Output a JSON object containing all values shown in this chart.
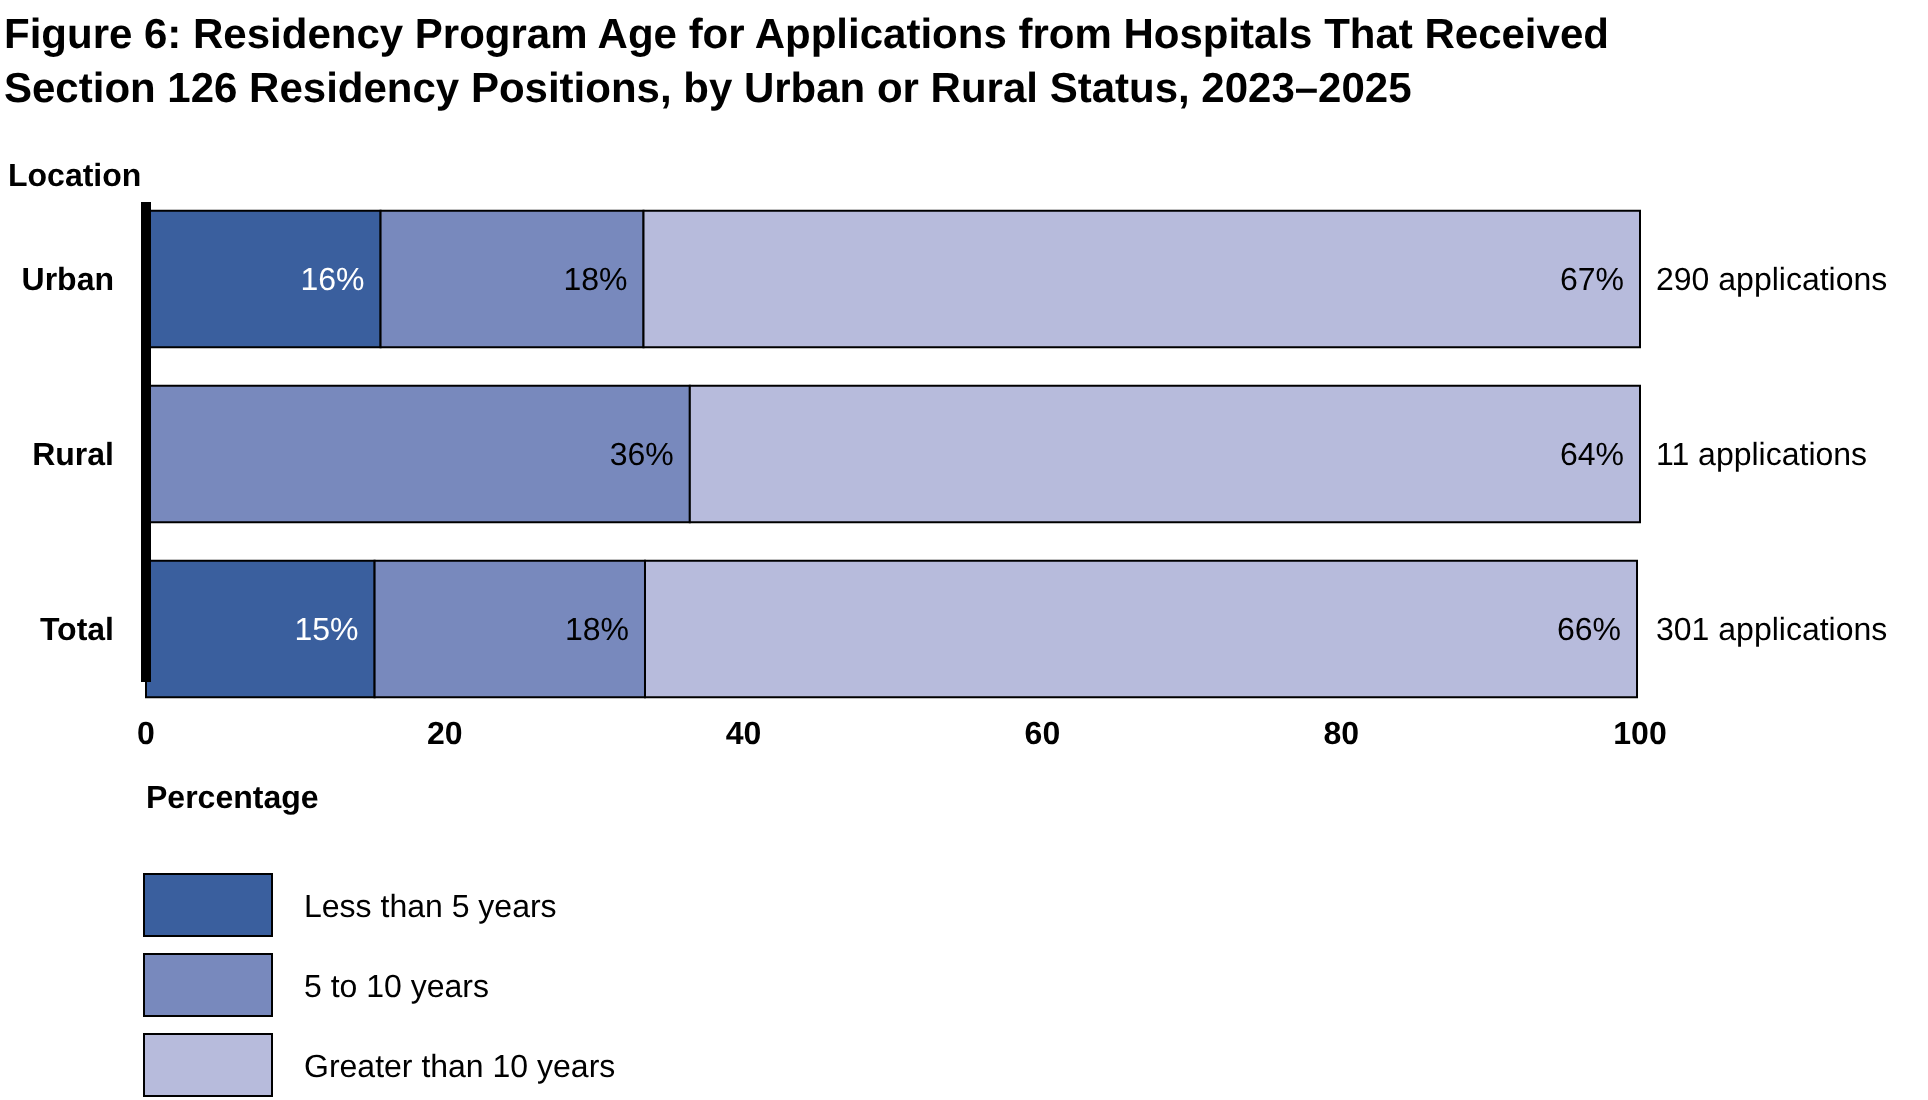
{
  "chart_data": {
    "type": "bar",
    "orientation": "horizontal",
    "stacked": true,
    "title": "Figure 6: Residency Program Age for Applications from Hospitals That Received Section 126 Residency Positions, by Urban or Rural Status, 2023–2025",
    "ylabel": "Location",
    "xlabel": "Percentage",
    "categories": [
      "Urban",
      "Rural",
      "Total"
    ],
    "series": [
      {
        "name": "Less than 5 years",
        "color": "#3a5f9e",
        "values": [
          15.7,
          0,
          15.3
        ],
        "value_labels": [
          "16%",
          null,
          "15%"
        ]
      },
      {
        "name": "5 to 10 years",
        "color": "#7889bd",
        "values": [
          17.6,
          36.4,
          18.1
        ],
        "value_labels": [
          "18%",
          "36%",
          "18%"
        ]
      },
      {
        "name": "Greater than 10 years",
        "color": "#b7bbdc",
        "values": [
          66.7,
          63.6,
          66.4
        ],
        "value_labels": [
          "67%",
          "64%",
          "66%"
        ]
      }
    ],
    "xlim": [
      0,
      100
    ],
    "xticks": [
      0,
      20,
      40,
      60,
      80,
      100
    ],
    "grid": false,
    "legend": "bottom left",
    "annotations": [
      "290 applications",
      "11 applications",
      "301 applications"
    ]
  }
}
